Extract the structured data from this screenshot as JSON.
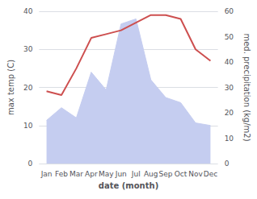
{
  "chart_data": {
    "type": "line",
    "xlabel": "date (month)",
    "ylabel": "max temp (C)",
    "y2label": "med. precipitation (kg/m2)",
    "categories": [
      "Jan",
      "Feb",
      "Mar",
      "Apr",
      "May",
      "Jun",
      "Jul",
      "Aug",
      "Sep",
      "Oct",
      "Nov",
      "Dec"
    ],
    "series": [
      {
        "type": "area",
        "axis": "y2",
        "color": "#c5cdf0",
        "values": [
          17,
          22,
          18,
          36,
          29,
          55,
          57,
          33,
          26,
          24,
          16,
          15
        ]
      },
      {
        "type": "line",
        "color": "#cd4f4f",
        "values": [
          19,
          18,
          25,
          33,
          34,
          35,
          37,
          39,
          39,
          38,
          30,
          27
        ]
      }
    ],
    "ylim": [
      0,
      40
    ],
    "yticks": [
      0,
      10,
      20,
      30,
      40
    ],
    "y2lim": [
      0,
      60
    ],
    "y2ticks": [
      0,
      10,
      20,
      30,
      40,
      50,
      60
    ],
    "grid": true
  }
}
